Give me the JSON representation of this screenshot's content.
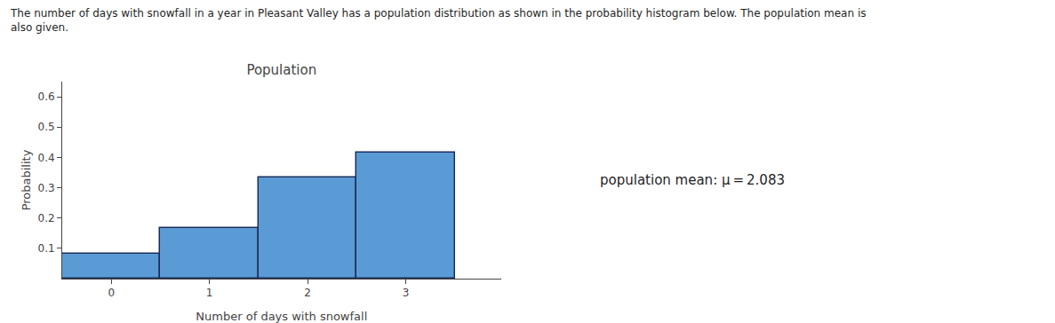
{
  "chart_data": {
    "type": "bar",
    "title": "Population",
    "subtitle": [
      "The number of days with snowfall in a year in Pleasant Valley has a population distribution as shown in the probability histogram below. The population mean is",
      "also given."
    ],
    "annotations": [
      "population mean: μ = 2.083"
    ],
    "xlabel": "Number of days with snowfall",
    "ylabel": "Probability",
    "x": [
      0,
      1,
      2,
      3
    ],
    "values": [
      0.083,
      0.167,
      0.333,
      0.417
    ],
    "color": "#5B9BD5",
    "xlim": [
      -0.5,
      3.97
    ],
    "xticks": [
      0,
      1,
      2,
      3
    ],
    "ylim": [
      0,
      0.65
    ],
    "yticks": [
      0.1,
      0.2,
      0.3,
      0.4,
      0.5,
      0.6
    ],
    "grid": false
  }
}
